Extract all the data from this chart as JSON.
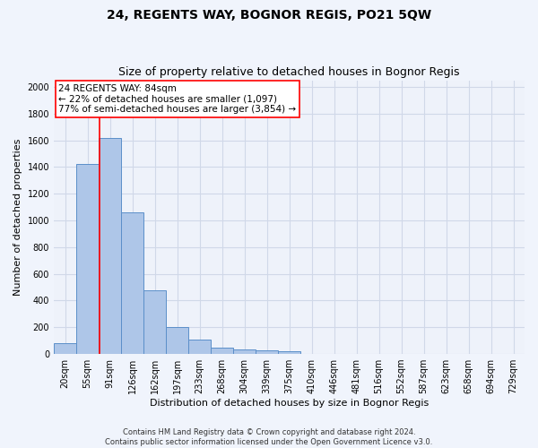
{
  "title": "24, REGENTS WAY, BOGNOR REGIS, PO21 5QW",
  "subtitle": "Size of property relative to detached houses in Bognor Regis",
  "xlabel": "Distribution of detached houses by size in Bognor Regis",
  "ylabel": "Number of detached properties",
  "bar_labels": [
    "20sqm",
    "55sqm",
    "91sqm",
    "126sqm",
    "162sqm",
    "197sqm",
    "233sqm",
    "268sqm",
    "304sqm",
    "339sqm",
    "375sqm",
    "410sqm",
    "446sqm",
    "481sqm",
    "516sqm",
    "552sqm",
    "587sqm",
    "623sqm",
    "658sqm",
    "694sqm",
    "729sqm"
  ],
  "bar_values": [
    80,
    1420,
    1620,
    1060,
    480,
    205,
    105,
    50,
    35,
    25,
    20,
    0,
    0,
    0,
    0,
    0,
    0,
    0,
    0,
    0,
    0
  ],
  "bar_color": "#aec6e8",
  "bar_edge_color": "#5b8fc9",
  "ylim": [
    0,
    2050
  ],
  "yticks": [
    0,
    200,
    400,
    600,
    800,
    1000,
    1200,
    1400,
    1600,
    1800,
    2000
  ],
  "grid_color": "#d0d8e8",
  "annotation_line1": "24 REGENTS WAY: 84sqm",
  "annotation_line2": "← 22% of detached houses are smaller (1,097)",
  "annotation_line3": "77% of semi-detached houses are larger (3,854) →",
  "footer_line1": "Contains HM Land Registry data © Crown copyright and database right 2024.",
  "footer_line2": "Contains public sector information licensed under the Open Government Licence v3.0.",
  "background_color": "#f0f4fc",
  "plot_background_color": "#eef2fa",
  "red_line_x": 1.55,
  "title_fontsize": 10,
  "subtitle_fontsize": 9,
  "ylabel_fontsize": 8,
  "xlabel_fontsize": 8,
  "tick_fontsize": 7,
  "ann_fontsize": 7.5,
  "footer_fontsize": 6
}
